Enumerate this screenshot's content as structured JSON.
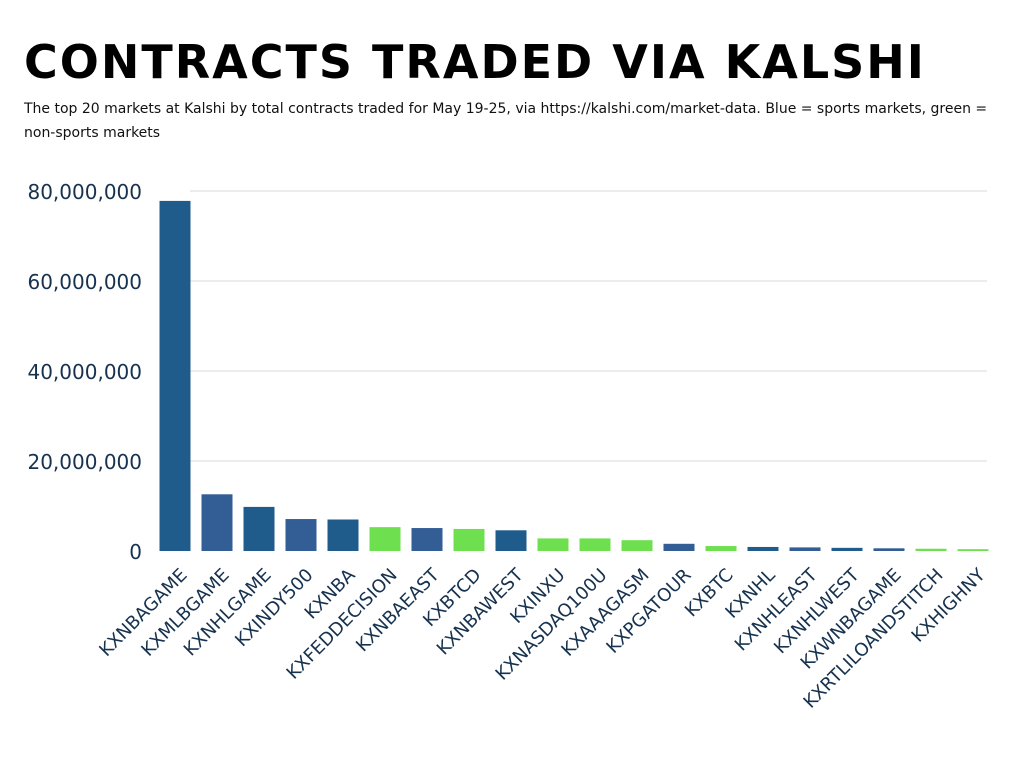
{
  "chart_data": {
    "type": "bar",
    "title": "CONTRACTS TRADED VIA KALSHI",
    "subtitle": "The top 20 markets at Kalshi by total contracts traded for May 19-25, via https://kalshi.com/market-data. Blue = sports markets, green = non-sports markets",
    "xlabel": "",
    "ylabel": "",
    "ylim": [
      0,
      80000000
    ],
    "yticks": [
      0,
      20000000,
      40000000,
      60000000,
      80000000
    ],
    "ytick_labels": [
      "0",
      "20,000,000",
      "40,000,000",
      "60,000,000",
      "80,000,000"
    ],
    "grid": true,
    "categories": [
      "KXNBAGAME",
      "KXMLBGAME",
      "KXNHLGAME",
      "KXINDY500",
      "KXNBA",
      "KXFEDDECISION",
      "KXNBAEAST",
      "KXBTCD",
      "KXNBAWEST",
      "KXINXU",
      "KXNASDAQ100U",
      "KXAAAGASM",
      "KXPGATOUR",
      "KXBTC",
      "KXNHL",
      "KXNHLEAST",
      "KXNHLWEST",
      "KXWNBAGAME",
      "KXRTLILOANDSTITCH",
      "KXHIGHNY"
    ],
    "values": [
      77800000,
      12600000,
      9800000,
      7100000,
      7000000,
      5300000,
      5100000,
      4900000,
      4600000,
      2800000,
      2800000,
      2400000,
      1600000,
      1100000,
      900000,
      800000,
      700000,
      600000,
      500000,
      400000
    ],
    "market_type": [
      "sports",
      "sports",
      "sports",
      "sports",
      "sports",
      "non-sports",
      "sports",
      "non-sports",
      "sports",
      "non-sports",
      "non-sports",
      "non-sports",
      "sports",
      "non-sports",
      "sports",
      "sports",
      "sports",
      "sports",
      "non-sports",
      "non-sports"
    ],
    "colors": {
      "sports_dark": "#1f5b8b",
      "sports_light": "#335d95",
      "non_sports": "#6ee04f",
      "grid": "#d9d9d9",
      "axis_text": "#16324f"
    }
  }
}
